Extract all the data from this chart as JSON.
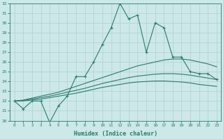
{
  "xlabel": "Humidex (Indice chaleur)",
  "bg_color": "#cce8e8",
  "grid_color": "#b0d0d0",
  "line_color": "#2a7a6f",
  "x_values": [
    0,
    1,
    2,
    3,
    4,
    5,
    6,
    7,
    8,
    9,
    10,
    11,
    12,
    13,
    14,
    15,
    16,
    17,
    18,
    19,
    20,
    21,
    22,
    23
  ],
  "ylim": [
    20,
    32
  ],
  "xlim": [
    -0.5,
    23.5
  ],
  "series_main": [
    22.0,
    21.2,
    22.0,
    22.0,
    19.8,
    21.5,
    22.5,
    24.5,
    24.5,
    26.0,
    27.8,
    29.5,
    32.0,
    30.4,
    30.8,
    27.0,
    30.0,
    29.5,
    26.5,
    26.5,
    25.0,
    24.8,
    24.8,
    24.2
  ],
  "curve1_x": [
    0,
    1,
    2,
    3,
    4,
    5,
    6,
    7,
    8,
    9,
    10,
    11,
    12,
    13,
    14,
    15,
    16,
    17,
    18,
    19,
    20,
    21,
    22,
    23
  ],
  "curve1_y": [
    22.0,
    22.1,
    22.3,
    22.5,
    22.7,
    22.9,
    23.2,
    23.5,
    23.8,
    24.1,
    24.4,
    24.7,
    25.0,
    25.3,
    25.6,
    25.8,
    26.0,
    26.2,
    26.3,
    26.3,
    26.2,
    26.0,
    25.8,
    25.5
  ],
  "curve2_x": [
    0,
    1,
    2,
    3,
    4,
    5,
    6,
    7,
    8,
    9,
    10,
    11,
    12,
    13,
    14,
    15,
    16,
    17,
    18,
    19,
    20,
    21,
    22,
    23
  ],
  "curve2_y": [
    22.0,
    22.05,
    22.2,
    22.35,
    22.5,
    22.7,
    22.9,
    23.1,
    23.3,
    23.55,
    23.8,
    24.0,
    24.2,
    24.4,
    24.55,
    24.65,
    24.75,
    24.8,
    24.8,
    24.75,
    24.65,
    24.5,
    24.35,
    24.2
  ],
  "curve3_x": [
    0,
    1,
    2,
    3,
    4,
    5,
    6,
    7,
    8,
    9,
    10,
    11,
    12,
    13,
    14,
    15,
    16,
    17,
    18,
    19,
    20,
    21,
    22,
    23
  ],
  "curve3_y": [
    22.0,
    22.02,
    22.1,
    22.2,
    22.35,
    22.5,
    22.65,
    22.8,
    23.0,
    23.2,
    23.4,
    23.55,
    23.7,
    23.85,
    23.95,
    24.0,
    24.05,
    24.05,
    24.0,
    23.95,
    23.85,
    23.7,
    23.6,
    23.5
  ]
}
